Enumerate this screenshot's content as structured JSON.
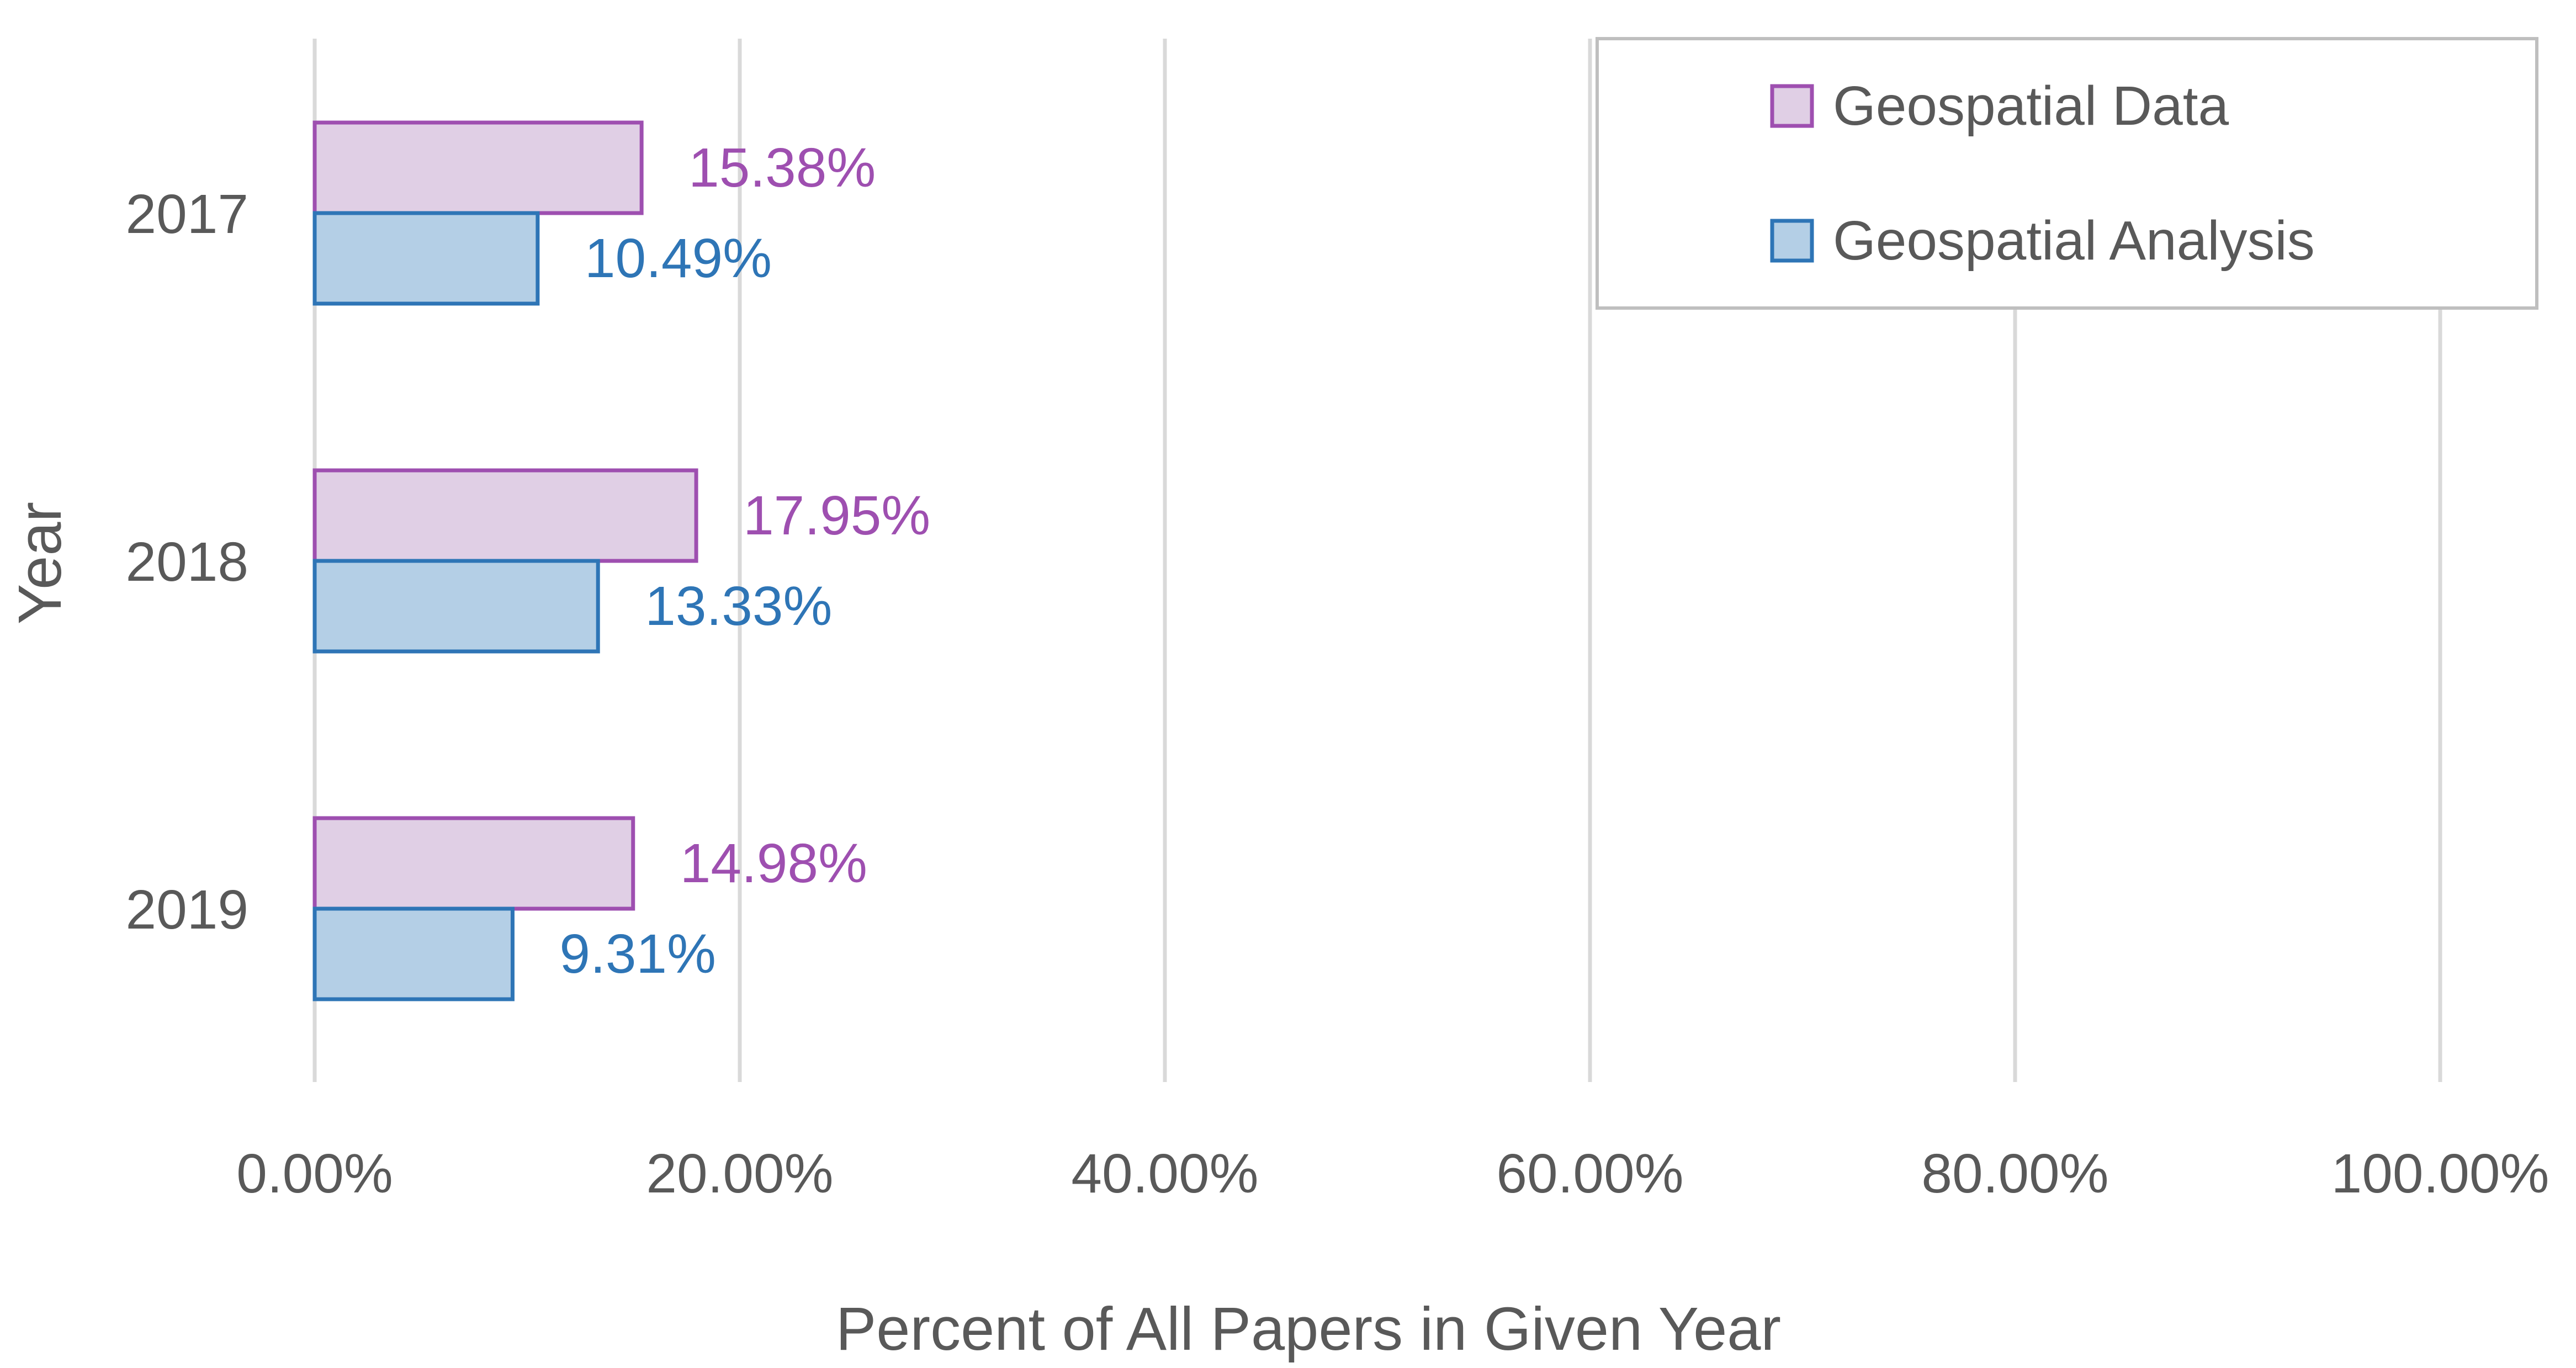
{
  "chart_data": {
    "type": "bar",
    "orientation": "horizontal",
    "title": "",
    "xlabel": "Percent of All Papers in Given Year",
    "ylabel": "Year",
    "categories": [
      "2017",
      "2018",
      "2019"
    ],
    "series": [
      {
        "name": "Geospatial Data",
        "values": [
          15.38,
          17.95,
          14.98
        ],
        "labels": [
          "15.38%",
          "17.95%",
          "14.98%"
        ],
        "color": "#9e4fb0",
        "fill": "#e0cfe5"
      },
      {
        "name": "Geospatial Analysis",
        "values": [
          10.49,
          13.33,
          9.31
        ],
        "labels": [
          "10.49%",
          "13.33%",
          "9.31%"
        ],
        "color": "#2e75b6",
        "fill": "#b4cfe6"
      }
    ],
    "xlim": [
      0,
      100
    ],
    "xticks": [
      0,
      20,
      40,
      60,
      80,
      100
    ],
    "xtick_labels": [
      "0.00%",
      "20.00%",
      "40.00%",
      "60.00%",
      "80.00%",
      "100.00%"
    ],
    "grid": true,
    "legend_position": "top-right"
  }
}
